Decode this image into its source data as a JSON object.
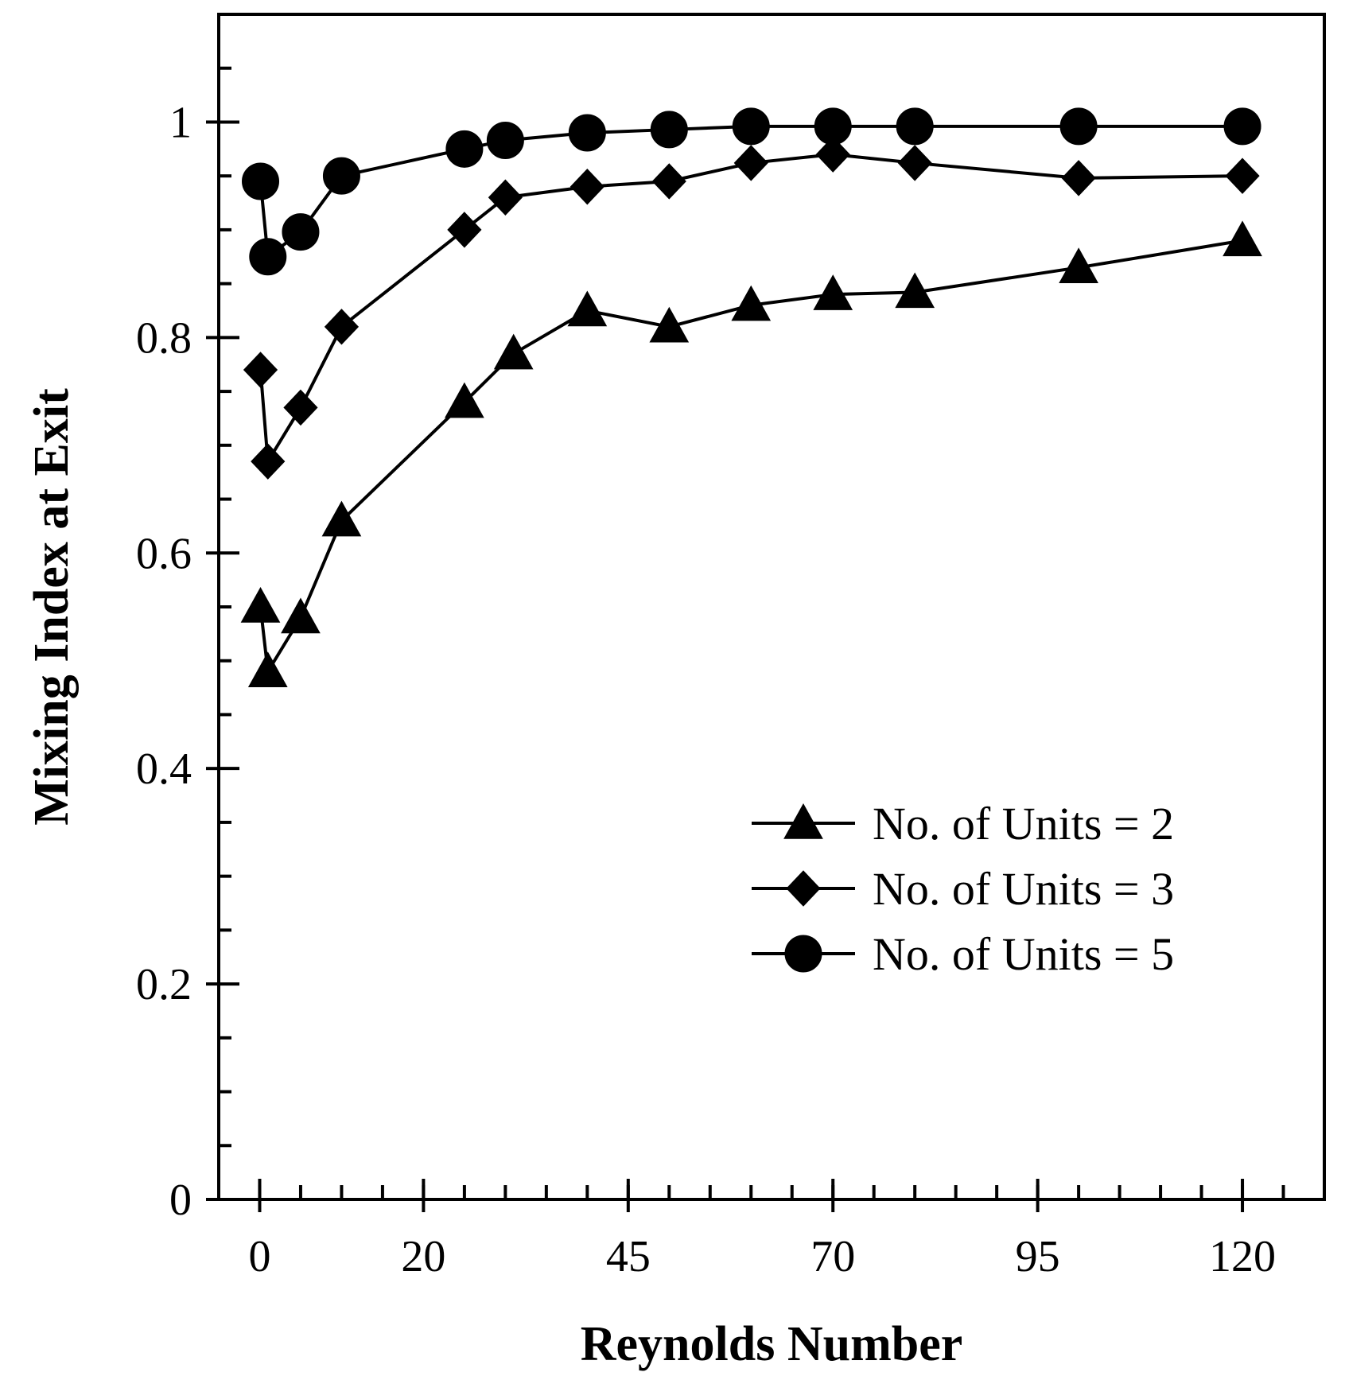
{
  "chart_data": {
    "type": "line",
    "xlabel": "Reynolds Number",
    "ylabel": "Mixing Index at Exit",
    "xlim": [
      -5,
      130
    ],
    "ylim": [
      0,
      1.1
    ],
    "xticks": [
      {
        "value": 0,
        "label": "0"
      },
      {
        "value": 20,
        "label": "20"
      },
      {
        "value": 45,
        "label": "45"
      },
      {
        "value": 70,
        "label": "70"
      },
      {
        "value": 95,
        "label": "95"
      },
      {
        "value": 120,
        "label": "120"
      }
    ],
    "yticks": [
      {
        "value": 0,
        "label": "0"
      },
      {
        "value": 0.2,
        "label": "0.2"
      },
      {
        "value": 0.4,
        "label": "0.4"
      },
      {
        "value": 0.6,
        "label": "0.6"
      },
      {
        "value": 0.8,
        "label": "0.8"
      },
      {
        "value": 1,
        "label": "1"
      }
    ],
    "legend_position": "bottom-right",
    "grid": false,
    "series": [
      {
        "name": "No. of Units = 2",
        "marker": "triangle",
        "x": [
          0.1,
          1,
          5,
          10,
          25,
          31,
          40,
          50,
          60,
          70,
          80,
          100,
          120
        ],
        "y": [
          0.55,
          0.49,
          0.54,
          0.63,
          0.74,
          0.785,
          0.825,
          0.81,
          0.83,
          0.84,
          0.842,
          0.865,
          0.89
        ]
      },
      {
        "name": "No. of Units = 3",
        "marker": "diamond",
        "x": [
          0.1,
          1,
          5,
          10,
          25,
          30,
          40,
          50,
          60,
          70,
          80,
          100,
          120
        ],
        "y": [
          0.77,
          0.685,
          0.735,
          0.81,
          0.9,
          0.93,
          0.94,
          0.945,
          0.962,
          0.97,
          0.962,
          0.948,
          0.95
        ]
      },
      {
        "name": "No. of Units = 5",
        "marker": "circle",
        "x": [
          0.1,
          1,
          5,
          10,
          25,
          30,
          40,
          50,
          60,
          70,
          80,
          100,
          120
        ],
        "y": [
          0.945,
          0.875,
          0.898,
          0.95,
          0.975,
          0.983,
          0.99,
          0.993,
          0.996,
          0.996,
          0.996,
          0.996,
          0.996
        ]
      }
    ]
  }
}
